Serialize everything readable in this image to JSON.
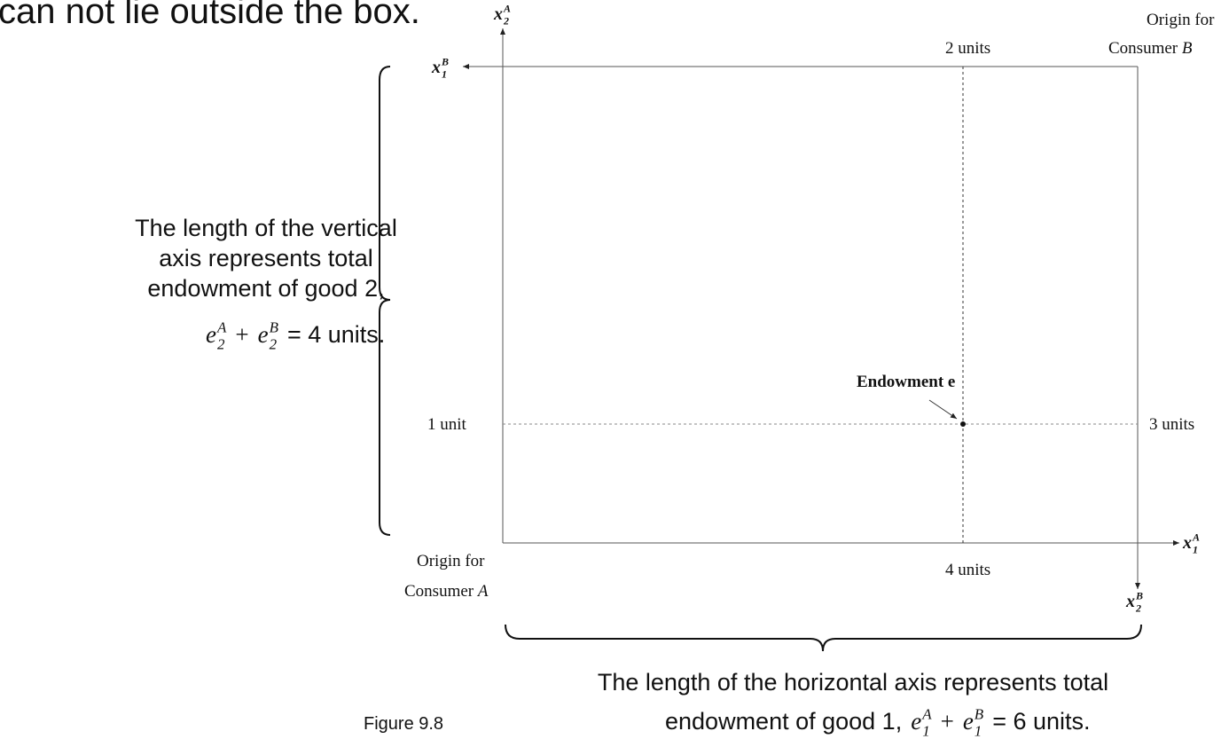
{
  "heading": "can not lie outside the box.",
  "axis_labels": {
    "x1B": {
      "base": "x",
      "sub": "1",
      "sup": "B"
    },
    "x2A": {
      "base": "x",
      "sub": "2",
      "sup": "A"
    },
    "x1A": {
      "base": "x",
      "sub": "1",
      "sup": "A"
    },
    "x2B": {
      "base": "x",
      "sub": "2",
      "sup": "B"
    }
  },
  "labels": {
    "top_units": "2 units",
    "origin_b": {
      "line1": "Origin for",
      "line2": "Consumer",
      "letter": "B"
    },
    "left_units": "1 unit",
    "right_units": "3 units",
    "endowment": "Endowment e",
    "origin_a": {
      "line1": "Origin for",
      "line2": "Consumer",
      "letter": "A"
    },
    "bottom_units": "4 units"
  },
  "vertical_note": {
    "lines": [
      "The length of the vertical",
      "axis represents total",
      "endowment of good 2,"
    ],
    "equation": {
      "terms": [
        {
          "base": "e",
          "sub": "2",
          "sup": "A"
        },
        {
          "base": "e",
          "sub": "2",
          "sup": "B"
        }
      ],
      "op": "+",
      "rhs": "= 4 units."
    }
  },
  "horizontal_note": {
    "line1": "The length of the horizontal axis represents total",
    "prefix": "endowment of good 1,",
    "equation": {
      "terms": [
        {
          "base": "e",
          "sub": "1",
          "sup": "A"
        },
        {
          "base": "e",
          "sub": "1",
          "sup": "B"
        }
      ],
      "op": "+",
      "rhs": "= 6 units."
    }
  },
  "figure_label": "Figure 9.8"
}
